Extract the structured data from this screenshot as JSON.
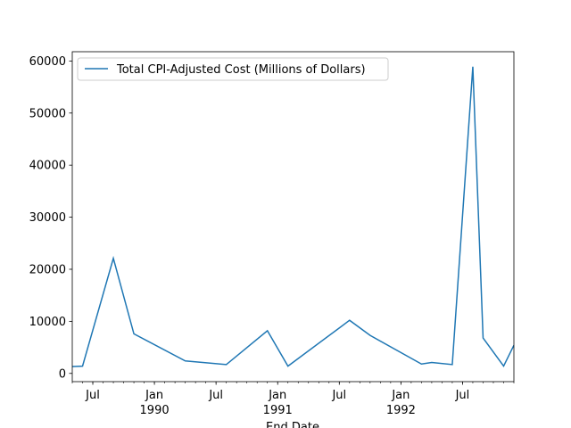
{
  "chart_data": {
    "type": "line",
    "x": [
      "1989-05",
      "1989-06",
      "1989-09",
      "1989-11",
      "1990-04",
      "1990-08",
      "1990-12",
      "1991-02",
      "1991-08",
      "1991-10",
      "1992-03",
      "1992-04",
      "1992-06",
      "1992-08",
      "1992-09",
      "1992-11",
      "1992-12"
    ],
    "series": [
      {
        "name": "Total CPI-Adjusted Cost (Millions of Dollars)",
        "color": "#1f77b4",
        "values": [
          1300,
          1400,
          22100,
          7600,
          2400,
          1700,
          8200,
          1400,
          10200,
          7300,
          1800,
          2100,
          1700,
          58900,
          6800,
          1400,
          5400
        ]
      }
    ],
    "xlabel": "End Date",
    "xlim": [
      "1989-05",
      "1992-12"
    ],
    "xticks": [
      {
        "value": "1989-07",
        "label": "Jul"
      },
      {
        "value": "1990-01",
        "label": "Jan",
        "year": "1990"
      },
      {
        "value": "1990-07",
        "label": "Jul"
      },
      {
        "value": "1991-01",
        "label": "Jan",
        "year": "1991"
      },
      {
        "value": "1991-07",
        "label": "Jul"
      },
      {
        "value": "1992-01",
        "label": "Jan",
        "year": "1992"
      },
      {
        "value": "1992-07",
        "label": "Jul"
      }
    ],
    "ylim": [
      -1580,
      61780
    ],
    "yticks": [
      0,
      10000,
      20000,
      30000,
      40000,
      50000,
      60000
    ],
    "legend": "upper left"
  }
}
